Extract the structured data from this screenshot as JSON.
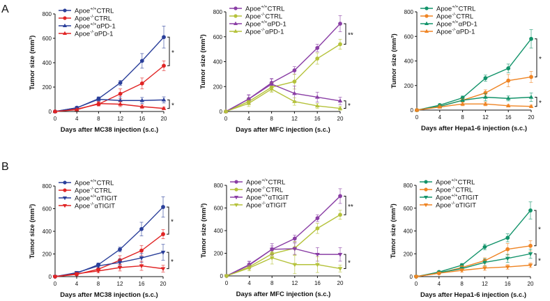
{
  "panel_labels": [
    "A",
    "B"
  ],
  "chart_data": [
    {
      "type": "line",
      "title": "",
      "xlabel": "Days after MC38 injection (s.c.)",
      "ylabel": "Tumor size (mm³)",
      "x": [
        0,
        4,
        8,
        12,
        16,
        20
      ],
      "xticks": [
        0,
        4,
        8,
        12,
        16,
        20
      ],
      "yticks": [
        0,
        200,
        400,
        600,
        800
      ],
      "ylim": [
        0,
        800
      ],
      "legend": "top-left",
      "series": [
        {
          "name": "Apoe+/+CTRL",
          "sup": "+/+",
          "label": "CTRL",
          "color": "#2a3f9a",
          "marker": "circle",
          "values": [
            0,
            30,
            105,
            235,
            415,
            610
          ],
          "err": [
            0,
            12,
            15,
            20,
            60,
            90
          ]
        },
        {
          "name": "Apoe-/-CTRL",
          "sup": "-/-",
          "label": "CTRL",
          "color": "#e02424",
          "marker": "circle",
          "values": [
            0,
            20,
            60,
            145,
            230,
            375
          ],
          "err": [
            0,
            10,
            15,
            40,
            45,
            40
          ]
        },
        {
          "name": "Apoe+/+αPD-1",
          "sup": "+/+",
          "label": "αPD-1",
          "color": "#2a3f9a",
          "marker": "triangle-up",
          "values": [
            0,
            30,
            100,
            90,
            90,
            95
          ],
          "err": [
            0,
            10,
            15,
            30,
            25,
            25
          ]
        },
        {
          "name": "Apoe-/-αPD-1",
          "sup": "-/-",
          "label": "αPD-1",
          "color": "#e02424",
          "marker": "triangle-up",
          "values": [
            0,
            15,
            65,
            60,
            40,
            25
          ],
          "err": [
            0,
            8,
            15,
            20,
            15,
            10
          ]
        }
      ],
      "significance": [
        "*",
        "*"
      ]
    },
    {
      "type": "line",
      "title": "",
      "xlabel": "Days after MFC injection (s.c.)",
      "ylabel": "Tumor size (mm³)",
      "x": [
        0,
        4,
        8,
        12,
        16,
        20
      ],
      "xticks": [
        0,
        4,
        8,
        12,
        16,
        20
      ],
      "yticks": [
        0,
        200,
        400,
        600,
        800
      ],
      "ylim": [
        0,
        800
      ],
      "legend": "top-left",
      "series": [
        {
          "name": "Apoe+/+CTRL",
          "sup": "+/+",
          "label": "CTRL",
          "color": "#8a3ea5",
          "marker": "circle",
          "values": [
            0,
            100,
            230,
            330,
            510,
            705
          ],
          "err": [
            0,
            30,
            30,
            30,
            30,
            65
          ]
        },
        {
          "name": "Apoe-/-CTRL",
          "sup": "-/-",
          "label": "CTRL",
          "color": "#b5c23b",
          "marker": "circle",
          "values": [
            0,
            80,
            195,
            240,
            425,
            540
          ],
          "err": [
            0,
            25,
            35,
            60,
            45,
            40
          ]
        },
        {
          "name": "Apoe+/+αPD-1",
          "sup": "+/+",
          "label": "αPD-1",
          "color": "#8a3ea5",
          "marker": "triangle-up",
          "values": [
            0,
            100,
            220,
            145,
            115,
            85
          ],
          "err": [
            0,
            35,
            45,
            60,
            40,
            30
          ]
        },
        {
          "name": "Apoe-/-αPD-1",
          "sup": "-/-",
          "label": "αPD-1",
          "color": "#b5c23b",
          "marker": "triangle-up",
          "values": [
            0,
            65,
            180,
            80,
            45,
            25
          ],
          "err": [
            0,
            25,
            25,
            30,
            20,
            15
          ]
        }
      ],
      "significance": [
        "**",
        "*"
      ]
    },
    {
      "type": "line",
      "title": "",
      "xlabel": "Days after Hepa1-6 injection (s.c.)",
      "ylabel": "Tumor size (mm³)",
      "x": [
        0,
        4,
        8,
        12,
        16,
        20
      ],
      "xticks": [
        0,
        4,
        8,
        12,
        16,
        20
      ],
      "yticks": [
        0,
        200,
        400,
        600,
        800
      ],
      "ylim": [
        0,
        800
      ],
      "legend": "top-left",
      "series": [
        {
          "name": "Apoe+/+CTRL",
          "sup": "+/+",
          "label": "CTRL",
          "color": "#12936a",
          "marker": "circle",
          "values": [
            0,
            40,
            100,
            260,
            340,
            580
          ],
          "err": [
            0,
            10,
            15,
            25,
            35,
            75
          ]
        },
        {
          "name": "Apoe-/-CTRL",
          "sup": "-/-",
          "label": "CTRL",
          "color": "#ef8423",
          "marker": "circle",
          "values": [
            0,
            30,
            80,
            140,
            240,
            270
          ],
          "err": [
            0,
            8,
            15,
            25,
            50,
            45
          ]
        },
        {
          "name": "Apoe+/+αPD-1",
          "sup": "+/+",
          "label": "αPD-1",
          "color": "#12936a",
          "marker": "triangle-up",
          "values": [
            0,
            30,
            80,
            105,
            95,
            105
          ],
          "err": [
            0,
            8,
            15,
            30,
            20,
            35
          ]
        },
        {
          "name": "Apoe-/-αPD-1",
          "sup": "-/-",
          "label": "αPD-1",
          "color": "#ef8423",
          "marker": "triangle-up",
          "values": [
            0,
            25,
            50,
            50,
            35,
            30
          ],
          "err": [
            0,
            8,
            15,
            15,
            10,
            10
          ]
        }
      ],
      "significance": [
        "*",
        "*"
      ]
    },
    {
      "type": "line",
      "title": "",
      "xlabel": "Days after MC38 injection (s.c.)",
      "ylabel": "Tumor size (mm³)",
      "x": [
        0,
        4,
        8,
        12,
        16,
        20
      ],
      "xticks": [
        0,
        4,
        8,
        12,
        16,
        20
      ],
      "yticks": [
        0,
        200,
        400,
        600,
        800
      ],
      "ylim": [
        0,
        800
      ],
      "legend": "top-left",
      "series": [
        {
          "name": "Apoe+/+CTRL",
          "sup": "+/+",
          "label": "CTRL",
          "color": "#2a3f9a",
          "marker": "circle",
          "values": [
            0,
            30,
            105,
            240,
            420,
            615
          ],
          "err": [
            0,
            12,
            15,
            20,
            60,
            90
          ]
        },
        {
          "name": "Apoe-/-CTRL",
          "sup": "-/-",
          "label": "CTRL",
          "color": "#e02424",
          "marker": "circle",
          "values": [
            0,
            20,
            65,
            145,
            230,
            375
          ],
          "err": [
            0,
            10,
            15,
            40,
            45,
            40
          ]
        },
        {
          "name": "Apoe+/+αTIGIT",
          "sup": "+/+",
          "label": "αTIGIT",
          "color": "#2a3f9a",
          "marker": "triangle-down",
          "values": [
            0,
            35,
            95,
            125,
            165,
            215
          ],
          "err": [
            0,
            10,
            15,
            30,
            40,
            70
          ]
        },
        {
          "name": "Apoe-/-αTIGIT",
          "sup": "-/-",
          "label": "αTIGIT",
          "color": "#e02424",
          "marker": "triangle-down",
          "values": [
            0,
            25,
            50,
            80,
            95,
            70
          ],
          "err": [
            0,
            8,
            15,
            30,
            40,
            30
          ]
        }
      ],
      "significance": [
        "*",
        "*"
      ]
    },
    {
      "type": "line",
      "title": "",
      "xlabel": "Days after MFC injection (s.c.)",
      "ylabel": "Tumor size (mm³)",
      "x": [
        0,
        4,
        8,
        12,
        16,
        20
      ],
      "xticks": [
        0,
        4,
        8,
        12,
        16,
        20
      ],
      "yticks": [
        0,
        200,
        400,
        600,
        800
      ],
      "ylim": [
        0,
        800
      ],
      "legend": "top-left",
      "series": [
        {
          "name": "Apoe+/+CTRL",
          "sup": "+/+",
          "label": "CTRL",
          "color": "#8a3ea5",
          "marker": "circle",
          "values": [
            0,
            100,
            235,
            330,
            510,
            705
          ],
          "err": [
            0,
            30,
            30,
            30,
            30,
            65
          ]
        },
        {
          "name": "Apoe-/-CTRL",
          "sup": "-/-",
          "label": "CTRL",
          "color": "#b5c23b",
          "marker": "circle",
          "values": [
            0,
            80,
            195,
            245,
            420,
            540
          ],
          "err": [
            0,
            25,
            35,
            60,
            45,
            40
          ]
        },
        {
          "name": "Apoe+/+αTIGIT",
          "sup": "+/+",
          "label": "αTIGIT",
          "color": "#8a3ea5",
          "marker": "triangle-down",
          "values": [
            0,
            95,
            235,
            240,
            190,
            190
          ],
          "err": [
            0,
            30,
            50,
            50,
            60,
            60
          ]
        },
        {
          "name": "Apoe-/-αTIGIT",
          "sup": "-/-",
          "label": "αTIGIT",
          "color": "#b5c23b",
          "marker": "triangle-down",
          "values": [
            0,
            70,
            160,
            100,
            100,
            65
          ],
          "err": [
            0,
            25,
            55,
            80,
            70,
            30
          ]
        }
      ],
      "significance": [
        "**",
        "*"
      ]
    },
    {
      "type": "line",
      "title": "",
      "xlabel": "Days after Hepa1-6 injection (s.c.)",
      "ylabel": "Tumor size (mm³)",
      "x": [
        0,
        4,
        8,
        12,
        16,
        20
      ],
      "xticks": [
        0,
        4,
        8,
        12,
        16,
        20
      ],
      "yticks": [
        0,
        200,
        400,
        600,
        800
      ],
      "ylim": [
        0,
        800
      ],
      "legend": "top-left",
      "series": [
        {
          "name": "Apoe+/+CTRL",
          "sup": "+/+",
          "label": "CTRL",
          "color": "#12936a",
          "marker": "circle",
          "values": [
            0,
            40,
            100,
            260,
            340,
            580
          ],
          "err": [
            0,
            10,
            15,
            25,
            35,
            75
          ]
        },
        {
          "name": "Apoe-/-CTRL",
          "sup": "-/-",
          "label": "CTRL",
          "color": "#ef8423",
          "marker": "circle",
          "values": [
            0,
            30,
            80,
            140,
            240,
            270
          ],
          "err": [
            0,
            8,
            15,
            25,
            50,
            45
          ]
        },
        {
          "name": "Apoe+/+αTIGIT",
          "sup": "+/+",
          "label": "αTIGIT",
          "color": "#12936a",
          "marker": "triangle-down",
          "values": [
            0,
            35,
            70,
            125,
            160,
            200
          ],
          "err": [
            0,
            8,
            15,
            30,
            35,
            40
          ]
        },
        {
          "name": "Apoe-/-αTIGIT",
          "sup": "-/-",
          "label": "αTIGIT",
          "color": "#ef8423",
          "marker": "triangle-down",
          "values": [
            0,
            30,
            55,
            75,
            85,
            100
          ],
          "err": [
            0,
            8,
            15,
            20,
            20,
            20
          ]
        }
      ],
      "significance": [
        "*",
        "*"
      ]
    }
  ]
}
